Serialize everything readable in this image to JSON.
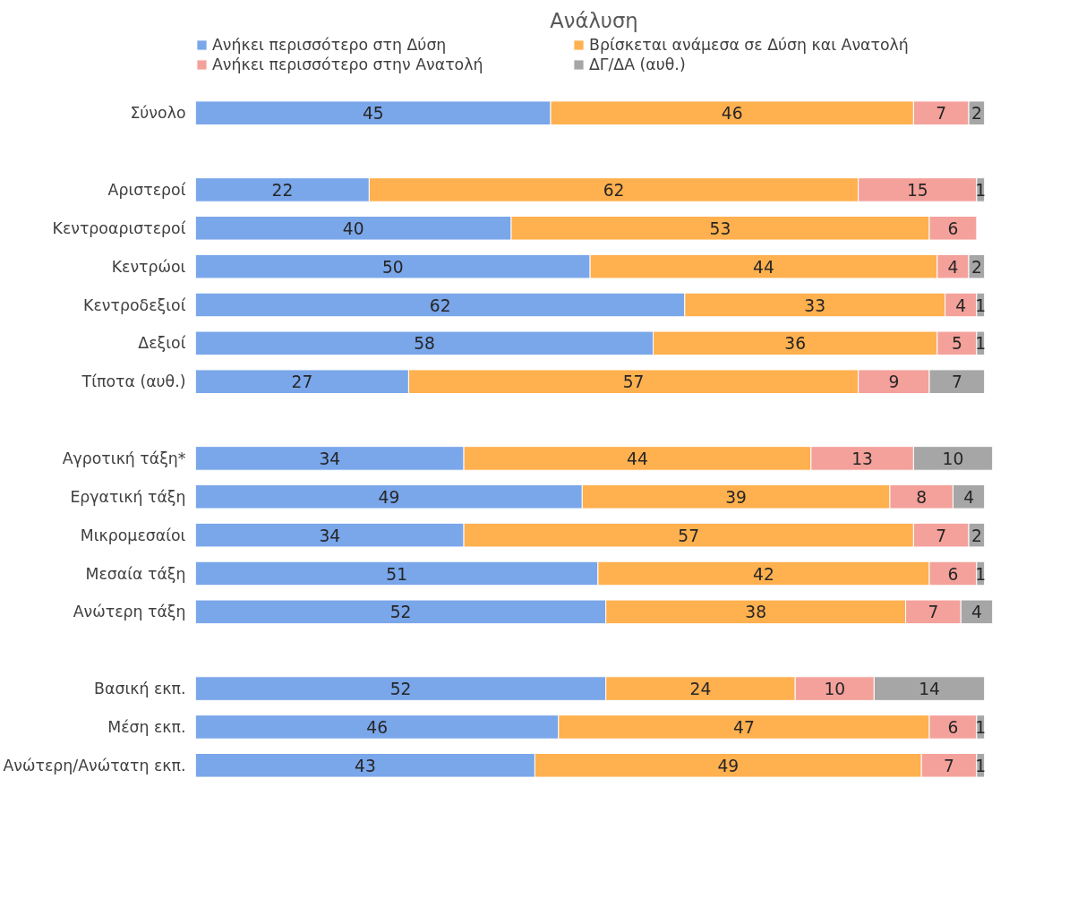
{
  "chart_data": {
    "type": "bar",
    "orientation": "horizontal",
    "stacked": true,
    "title": "Ανάλυση",
    "categories": [
      "Σύνολο",
      null,
      "Αριστεροί",
      "Κεντροαριστεροί",
      "Κεντρώοι",
      "Κεντροδεξιοί",
      "Δεξιοί",
      "Τίποτα (αυθ.)",
      null,
      "Αγροτική τάξη*",
      "Εργατική τάξη",
      "Μικρομεσαίοι",
      "Μεσαία τάξη",
      "Ανώτερη τάξη",
      null,
      "Βασική εκπ.",
      "Μέση εκπ.",
      "Ανώτερη/Ανώτατη εκπ."
    ],
    "series": [
      {
        "name": "Ανήκει περισσότερο στη Δύση",
        "color": "#7aa6ea",
        "values": [
          45,
          null,
          22,
          40,
          50,
          62,
          58,
          27,
          null,
          34,
          49,
          34,
          51,
          52,
          null,
          52,
          46,
          43
        ]
      },
      {
        "name": "Βρίσκεται ανάμεσα σε Δύση και Ανατολή",
        "color": "#ffb04f",
        "values": [
          46,
          null,
          62,
          53,
          44,
          33,
          36,
          57,
          null,
          44,
          39,
          57,
          42,
          38,
          null,
          24,
          47,
          49
        ]
      },
      {
        "name": "Ανήκει περισσότερο στην Ανατολή",
        "color": "#f4a19b",
        "values": [
          7,
          null,
          15,
          6,
          4,
          4,
          5,
          9,
          null,
          13,
          8,
          7,
          6,
          7,
          null,
          10,
          6,
          7
        ]
      },
      {
        "name": "ΔΓ/ΔΑ (αυθ.)",
        "color": "#a6a6a6",
        "values": [
          2,
          null,
          1,
          null,
          2,
          1,
          1,
          7,
          null,
          10,
          4,
          2,
          1,
          4,
          null,
          14,
          1,
          1
        ]
      }
    ],
    "xlim": [
      0,
      101
    ],
    "tick_labels": "y",
    "data_labels": true,
    "legend": "top",
    "grid": false
  }
}
